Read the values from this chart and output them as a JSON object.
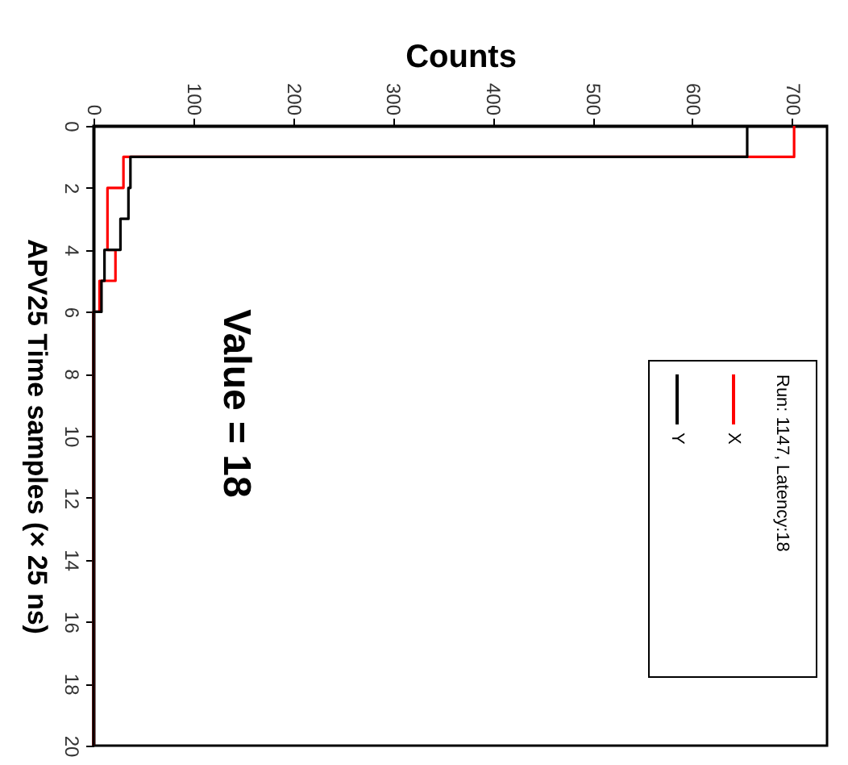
{
  "chart_data": {
    "type": "histogram",
    "orientation": "horizontal",
    "xlabel": "Counts",
    "ylabel": "APV25 Time samples (× 25 ns)",
    "legend_title": "Run: 1147, Latency:18",
    "annotations": [
      "Value = 18"
    ],
    "bins": [
      0,
      1,
      2,
      3,
      4,
      5,
      6,
      7,
      8,
      9,
      10,
      11,
      12,
      13,
      14,
      15,
      16,
      17,
      18,
      19,
      20
    ],
    "series": [
      {
        "name": "X",
        "color": "#ff0000",
        "values": [
          702,
          30,
          14,
          14,
          22,
          6,
          0,
          0,
          0,
          0,
          0,
          0,
          0,
          0,
          0,
          0,
          0,
          0,
          0,
          0
        ]
      },
      {
        "name": "Y",
        "color": "#000000",
        "values": [
          655,
          37,
          35,
          27,
          11,
          8,
          0,
          0,
          0,
          0,
          0,
          0,
          0,
          0,
          0,
          0,
          0,
          0,
          0,
          0
        ]
      }
    ],
    "xlim": [
      0,
      735
    ],
    "xticks": [
      0,
      100,
      200,
      300,
      400,
      500,
      600,
      700
    ],
    "ylim": [
      20,
      0
    ],
    "yticks": [
      0,
      2,
      4,
      6,
      8,
      10,
      12,
      14,
      16,
      18,
      20
    ],
    "legend": "bottom right",
    "grid": false
  }
}
